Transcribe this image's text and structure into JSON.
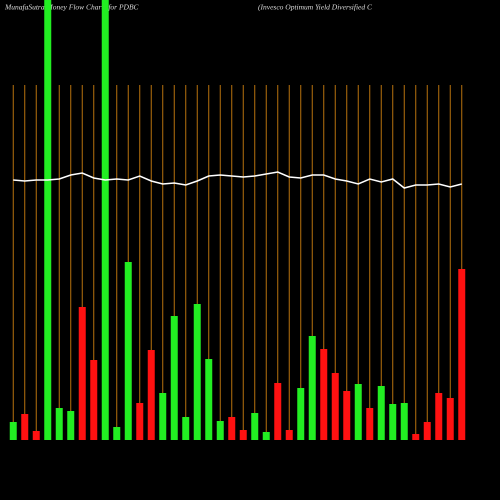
{
  "chart_data": {
    "type": "bar",
    "title": "MunafaSutra  Money Flow  Charts for PDBC",
    "subtitle": "(Invesco  Optimum Yield Diversified C",
    "categories": [
      null,
      null,
      null,
      null,
      null,
      null,
      null,
      null,
      null,
      null,
      null,
      null,
      null,
      null,
      null,
      null,
      null,
      null,
      null,
      null,
      null,
      null,
      null,
      null,
      null,
      null,
      null,
      null,
      null,
      null,
      null,
      null,
      null,
      null,
      null,
      null,
      null,
      null,
      null,
      null
    ],
    "values": [
      18,
      26,
      9,
      440,
      32,
      29,
      133,
      80,
      440,
      13,
      178,
      37,
      90,
      47,
      124,
      23,
      136,
      81,
      19,
      23,
      10,
      27,
      8,
      57,
      10,
      52,
      104,
      91,
      67,
      49,
      56,
      32,
      54,
      36,
      37,
      6,
      18,
      47,
      42,
      171
    ],
    "colors": [
      "#22ee22",
      "#ff1111",
      "#ff1111",
      "#22ee22",
      "#22ee22",
      "#22ee22",
      "#ff1111",
      "#ff1111",
      "#22ee22",
      "#22ee22",
      "#22ee22",
      "#ff1111",
      "#ff1111",
      "#22ee22",
      "#22ee22",
      "#22ee22",
      "#22ee22",
      "#22ee22",
      "#22ee22",
      "#ff1111",
      "#ff1111",
      "#22ee22",
      "#22ee22",
      "#ff1111",
      "#ff1111",
      "#22ee22",
      "#22ee22",
      "#ff1111",
      "#ff1111",
      "#ff1111",
      "#22ee22",
      "#ff1111",
      "#22ee22",
      "#22ee22",
      "#22ee22",
      "#ff1111",
      "#ff1111",
      "#ff1111",
      "#ff1111",
      "#ff1111"
    ],
    "line": {
      "color": "#ffffff",
      "values": [
        260,
        259,
        260,
        260,
        261,
        265,
        267,
        262,
        260,
        261,
        260,
        264,
        259,
        256,
        257,
        255,
        259,
        264,
        265,
        264,
        263,
        264,
        266,
        268,
        263,
        262,
        265,
        265,
        261,
        259,
        256,
        261,
        258,
        261,
        252,
        255,
        255,
        256,
        253,
        256
      ]
    },
    "grid_color": "#b8720e"
  }
}
